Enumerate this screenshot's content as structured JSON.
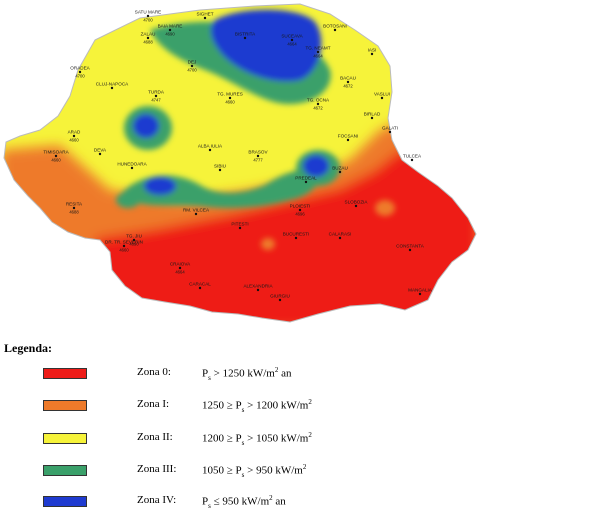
{
  "map": {
    "zone_colors": {
      "zona0": "#ee1c19",
      "zona1": "#ee7a2a",
      "zona2": "#f6f33a",
      "zona3": "#3aa06a",
      "zona4": "#1f3bd0"
    },
    "cities": [
      {
        "name": "SATU MARE",
        "value": "4700"
      },
      {
        "name": "SIGHET",
        "value": ""
      },
      {
        "name": "ZALAU",
        "value": "4688"
      },
      {
        "name": "BAIA MARE",
        "value": "4690"
      },
      {
        "name": "BISTRITA",
        "value": ""
      },
      {
        "name": "TG. NEAMT",
        "value": "4664"
      },
      {
        "name": "SUCEAVA",
        "value": "4664"
      },
      {
        "name": "BOTOSANI",
        "value": ""
      },
      {
        "name": "IASI",
        "value": ""
      },
      {
        "name": "ORADEA",
        "value": "4700"
      },
      {
        "name": "DEJ",
        "value": "4700"
      },
      {
        "name": "BACAU",
        "value": "4672"
      },
      {
        "name": "VASLUI",
        "value": ""
      },
      {
        "name": "CLUJ-NAPOCA",
        "value": ""
      },
      {
        "name": "TURDA",
        "value": "4747"
      },
      {
        "name": "TG. MURES",
        "value": "4660"
      },
      {
        "name": "TG. OCNA",
        "value": "4672"
      },
      {
        "name": "BIRLAD",
        "value": ""
      },
      {
        "name": "ARAD",
        "value": "4660"
      },
      {
        "name": "ALBA IULIA",
        "value": ""
      },
      {
        "name": "SIBIU",
        "value": ""
      },
      {
        "name": "BRASOV",
        "value": "4777"
      },
      {
        "name": "FOCSANI",
        "value": ""
      },
      {
        "name": "GALATI",
        "value": ""
      },
      {
        "name": "TIMISOARA",
        "value": "4660"
      },
      {
        "name": "DEVA",
        "value": ""
      },
      {
        "name": "HUNEDOARA",
        "value": ""
      },
      {
        "name": "PREDEAL",
        "value": ""
      },
      {
        "name": "BUZAU",
        "value": ""
      },
      {
        "name": "TULCEA",
        "value": ""
      },
      {
        "name": "RESITA",
        "value": "4688"
      },
      {
        "name": "TG. JIU",
        "value": "4690"
      },
      {
        "name": "RM. VILCEA",
        "value": ""
      },
      {
        "name": "PITESTI",
        "value": ""
      },
      {
        "name": "PLOIESTI",
        "value": "4696"
      },
      {
        "name": "SLOBOZIA",
        "value": ""
      },
      {
        "name": "DR. TR. SEVERIN",
        "value": "4660"
      },
      {
        "name": "CRAIOVA",
        "value": "4664"
      },
      {
        "name": "BUCURESTI",
        "value": ""
      },
      {
        "name": "CALARASI",
        "value": ""
      },
      {
        "name": "CONSTANTA",
        "value": ""
      },
      {
        "name": "CARACAL",
        "value": ""
      },
      {
        "name": "ALEXANDRIA",
        "value": ""
      },
      {
        "name": "GIURGIU",
        "value": ""
      },
      {
        "name": "MANGALIA",
        "value": ""
      }
    ]
  },
  "legend": {
    "title": "Legenda:",
    "items": [
      {
        "zone": "Zona 0:",
        "color": "#ee1c19",
        "pre": "P",
        "sub": "s",
        "post": " > 1250 kW/m",
        "sup": "2",
        "tail": " an"
      },
      {
        "zone": "Zona I:",
        "color": "#ee7a2a",
        "pre": "1250 ≥ P",
        "sub": "s",
        "post": " > 1200 kW/m",
        "sup": "2",
        "tail": ""
      },
      {
        "zone": "Zona II:",
        "color": "#f6f33a",
        "pre": "1200 ≥ P",
        "sub": "s",
        "post": " > 1050 kW/m",
        "sup": "2",
        "tail": ""
      },
      {
        "zone": "Zona III:",
        "color": "#3aa06a",
        "pre": "1050 ≥ P",
        "sub": "s",
        "post": " > 950 kW/m",
        "sup": "2",
        "tail": ""
      },
      {
        "zone": "Zona IV:",
        "color": "#1f3bd0",
        "pre": "P",
        "sub": "s",
        "post": " ≤ 950 kW/m",
        "sup": "2",
        "tail": " an"
      }
    ]
  }
}
